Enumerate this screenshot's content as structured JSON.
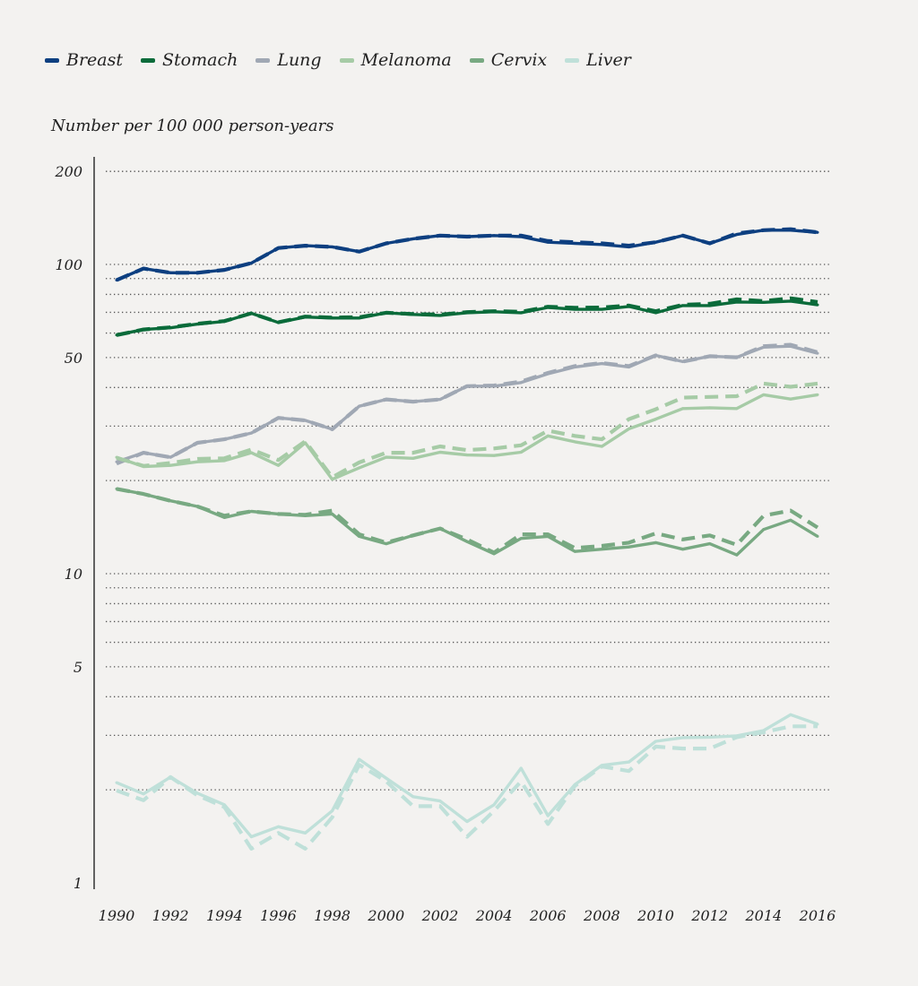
{
  "chart_data": {
    "type": "line",
    "title": "",
    "xlabel": "",
    "ylabel": "Number per 100 000 person-years",
    "y_scale": "log",
    "ylim": [
      1,
      200
    ],
    "xlim": [
      1990,
      2016
    ],
    "grid": true,
    "legend_position": "top-left",
    "y_ticks": [
      1,
      5,
      10,
      50,
      100,
      200
    ],
    "x_ticks": [
      1990,
      1992,
      1994,
      1996,
      1998,
      2000,
      2002,
      2004,
      2006,
      2008,
      2010,
      2012,
      2014,
      2016
    ],
    "x": [
      1990,
      1991,
      1992,
      1993,
      1994,
      1995,
      1996,
      1997,
      1998,
      1999,
      2000,
      2001,
      2002,
      2003,
      2004,
      2005,
      2006,
      2007,
      2008,
      2009,
      2010,
      2011,
      2012,
      2013,
      2014,
      2015,
      2016
    ],
    "series": [
      {
        "name": "Breast",
        "color": "#0d3f80",
        "solid": [
          89,
          97,
          94,
          94,
          96,
          101,
          113,
          115,
          114,
          110,
          117,
          121,
          124,
          123,
          124,
          123,
          118,
          117,
          116,
          114,
          118,
          124,
          117,
          125,
          129,
          129,
          127
        ],
        "dashed": [
          89,
          97,
          94,
          94,
          96,
          101,
          113,
          115,
          114,
          110,
          117,
          121,
          124,
          123,
          124,
          124,
          119,
          118,
          117,
          115,
          118,
          124,
          117,
          126,
          129,
          130,
          127
        ]
      },
      {
        "name": "Stomach",
        "color": "#0a6b3a",
        "solid": [
          59.1,
          61.6,
          62.4,
          64.1,
          65.4,
          69.5,
          64.9,
          67.6,
          67.1,
          67.1,
          69.8,
          68.9,
          68.4,
          69.8,
          70.3,
          69.8,
          72.6,
          71.6,
          71.6,
          73.1,
          69.8,
          73.6,
          73.6,
          75.6,
          75.4,
          76.1,
          74.0
        ],
        "dashed": [
          59.1,
          61.6,
          62.6,
          64.3,
          65.6,
          69.5,
          65.0,
          67.8,
          67.3,
          67.5,
          69.8,
          69.1,
          68.8,
          70.1,
          70.6,
          70.3,
          73.0,
          72.4,
          72.6,
          73.6,
          70.6,
          74.0,
          74.6,
          77.1,
          76.1,
          77.7,
          75.6
        ]
      },
      {
        "name": "Lung",
        "color": "#a0a8b4",
        "solid": [
          23.0,
          24.6,
          23.8,
          26.5,
          27.2,
          28.5,
          31.9,
          31.3,
          29.3,
          34.8,
          36.6,
          36.0,
          36.6,
          40.4,
          40.4,
          41.5,
          44.3,
          46.6,
          47.8,
          46.6,
          50.8,
          48.5,
          50.5,
          50.1,
          54.0,
          54.4,
          51.6
        ],
        "dashed": [
          22.7,
          24.6,
          23.8,
          26.5,
          27.2,
          28.5,
          31.9,
          31.3,
          29.3,
          34.8,
          36.6,
          36.0,
          36.6,
          40.4,
          40.6,
          41.8,
          44.6,
          46.9,
          48.0,
          46.9,
          50.8,
          48.5,
          50.5,
          50.1,
          54.4,
          55.0,
          52.0
        ]
      },
      {
        "name": "Melanoma",
        "color": "#a6cba6",
        "solid": [
          23.8,
          22.2,
          22.4,
          23.0,
          23.2,
          24.6,
          22.4,
          26.5,
          20.2,
          22.0,
          23.8,
          23.6,
          24.7,
          24.2,
          24.1,
          24.7,
          27.9,
          26.7,
          25.8,
          29.4,
          31.6,
          34.2,
          34.4,
          34.2,
          37.9,
          36.7,
          37.9
        ],
        "dashed": [
          23.7,
          22.3,
          22.8,
          23.5,
          23.6,
          25.2,
          23.3,
          26.8,
          20.5,
          22.9,
          24.6,
          24.6,
          25.8,
          25.1,
          25.4,
          26.0,
          29.0,
          27.9,
          27.2,
          31.6,
          34.0,
          37.1,
          37.3,
          37.5,
          41.2,
          40.2,
          41.2
        ]
      },
      {
        "name": "Cervix",
        "color": "#78a982",
        "solid": [
          18.8,
          18.1,
          17.2,
          16.5,
          15.2,
          15.9,
          15.6,
          15.4,
          15.6,
          13.2,
          12.5,
          13.3,
          14.0,
          12.7,
          11.6,
          13.0,
          13.2,
          11.8,
          12.0,
          12.2,
          12.6,
          12.0,
          12.5,
          11.5,
          13.9,
          14.9,
          13.2
        ],
        "dashed": [
          18.8,
          18.1,
          17.2,
          16.5,
          15.4,
          15.9,
          15.6,
          15.5,
          16.0,
          13.4,
          12.6,
          13.3,
          14.0,
          12.9,
          11.7,
          13.4,
          13.4,
          12.1,
          12.3,
          12.6,
          13.5,
          12.9,
          13.3,
          12.4,
          15.4,
          16.0,
          14.1
        ]
      },
      {
        "name": "Liver",
        "color": "#bfe0d9",
        "solid": [
          2.11,
          1.94,
          2.2,
          1.95,
          1.79,
          1.41,
          1.52,
          1.45,
          1.71,
          2.51,
          2.18,
          1.9,
          1.84,
          1.58,
          1.79,
          2.35,
          1.65,
          2.08,
          2.4,
          2.46,
          2.87,
          2.95,
          2.96,
          2.99,
          3.11,
          3.5,
          3.26
        ],
        "dashed": [
          1.99,
          1.85,
          2.2,
          1.92,
          1.76,
          1.29,
          1.45,
          1.29,
          1.63,
          2.41,
          2.13,
          1.77,
          1.77,
          1.41,
          1.71,
          2.13,
          1.55,
          2.06,
          2.38,
          2.3,
          2.76,
          2.72,
          2.72,
          2.96,
          3.07,
          3.21,
          3.21
        ]
      }
    ]
  }
}
